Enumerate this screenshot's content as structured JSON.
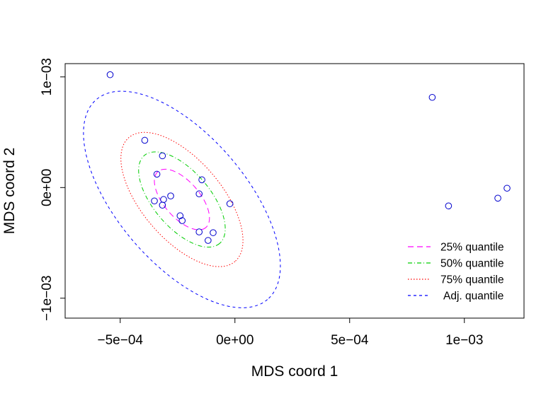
{
  "chart_data": {
    "type": "scatter",
    "xlabel": "MDS coord 1",
    "ylabel": "MDS coord 2",
    "xlim": [
      -0.00074,
      0.00126
    ],
    "ylim": [
      -0.00118,
      0.00112
    ],
    "grid": false,
    "x_ticks": [
      -0.0005,
      0,
      0.0005,
      0.001
    ],
    "x_tick_labels": [
      "−5e−04",
      "0e+00",
      "5e−04",
      "1e−03"
    ],
    "y_ticks": [
      0.001,
      0,
      -0.001
    ],
    "y_tick_labels": [
      "1e−03",
      "0e+00",
      "−1e−03"
    ],
    "point_color": "#0000cd",
    "points": [
      {
        "x": -0.000544,
        "y": 0.00102
      },
      {
        "x": 0.00086,
        "y": 0.000815
      },
      {
        "x": -0.000393,
        "y": 0.000427
      },
      {
        "x": -0.000316,
        "y": 0.000287
      },
      {
        "x": -0.00034,
        "y": 0.000121
      },
      {
        "x": -0.000144,
        "y": 7e-05
      },
      {
        "x": -0.00028,
        "y": -7.6e-05
      },
      {
        "x": -0.000156,
        "y": -5.7e-05
      },
      {
        "x": -0.000311,
        "y": -0.000108
      },
      {
        "x": -0.000351,
        "y": -0.000121
      },
      {
        "x": -0.000316,
        "y": -0.000159
      },
      {
        "x": -2.2e-05,
        "y": -0.000146
      },
      {
        "x": -0.000239,
        "y": -0.000255
      },
      {
        "x": -0.00023,
        "y": -0.000299
      },
      {
        "x": -0.000156,
        "y": -0.000401
      },
      {
        "x": -9.5e-05,
        "y": -0.000408
      },
      {
        "x": -0.000117,
        "y": -0.000478
      },
      {
        "x": 0.001186,
        "y": -6e-06
      },
      {
        "x": 0.001146,
        "y": -9.6e-05
      },
      {
        "x": 0.000931,
        "y": -0.000166
      }
    ],
    "ellipses": [
      {
        "name": "25% quantile",
        "color": "#ff00ff",
        "dash": "8 5",
        "scale": 0.28
      },
      {
        "name": "50% quantile",
        "color": "#00cd00",
        "dash": "6 3 1 3",
        "scale": 0.44
      },
      {
        "name": "75% quantile",
        "color": "#ff0000",
        "dash": "1.5 2.5",
        "scale": 0.62
      },
      {
        "name": "Adj. quantile",
        "color": "#0000ff",
        "dash": "4 4",
        "scale": 1.0
      }
    ],
    "ellipse_center": {
      "x": -0.000231,
      "y": -0.000108
    },
    "legend": {
      "position": "bottom-right",
      "entries": [
        "25% quantile",
        "50% quantile",
        "75% quantile",
        "Adj. quantile"
      ]
    }
  }
}
